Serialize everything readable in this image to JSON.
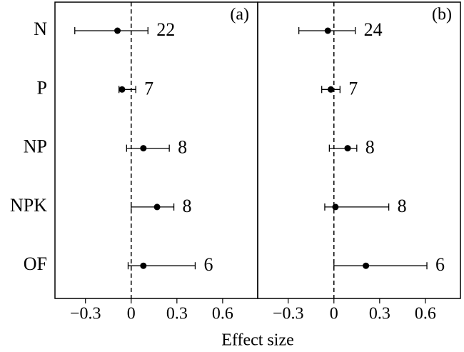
{
  "chart_data": {
    "type": "forest",
    "categories": [
      "N",
      "P",
      "NP",
      "NPK",
      "OF"
    ],
    "xlabel": "Effect size",
    "xlim": [
      -0.5,
      0.83
    ],
    "xticks": [
      {
        "value": -0.3,
        "label": "−0.3"
      },
      0,
      0.3,
      0.6
    ],
    "color": "#000000",
    "panels": [
      {
        "label": "(a)",
        "values": [
          -0.09,
          -0.06,
          0.08,
          0.17,
          0.08
        ],
        "lower": [
          -0.37,
          -0.08,
          -0.03,
          0,
          -0.02
        ],
        "upper": [
          0.11,
          0.03,
          0.25,
          0.28,
          0.42
        ],
        "n": [
          22,
          7,
          8,
          8,
          6
        ]
      },
      {
        "label": "(b)",
        "values": [
          -0.04,
          -0.02,
          0.09,
          0.01,
          0.21
        ],
        "lower": [
          -0.23,
          -0.08,
          -0.03,
          -0.06,
          0
        ],
        "upper": [
          0.14,
          0.04,
          0.15,
          0.36,
          0.61
        ],
        "n": [
          24,
          7,
          8,
          8,
          6
        ]
      }
    ]
  }
}
